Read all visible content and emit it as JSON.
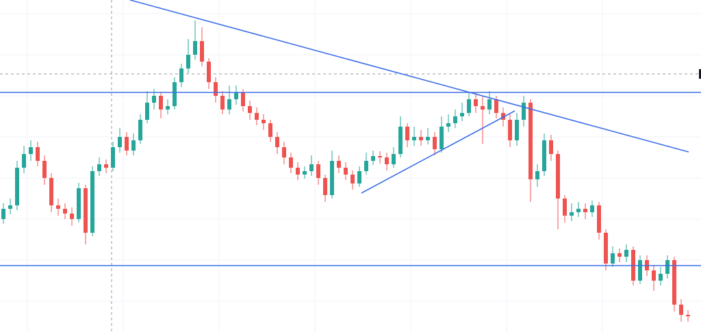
{
  "chart_data": {
    "type": "candlestick",
    "up_color": "#26a69a",
    "down_color": "#ef5350",
    "ylim": [
      0,
      485
    ],
    "open": [
      165,
      180,
      185,
      240,
      260,
      270,
      250,
      225,
      185,
      180,
      173,
      165,
      210,
      145,
      235,
      245,
      240,
      270,
      285,
      265,
      280,
      310,
      335,
      345,
      325,
      330,
      365,
      385,
      405,
      425,
      395,
      365,
      345,
      325,
      340,
      350,
      330,
      320,
      310,
      305,
      285,
      270,
      255,
      240,
      230,
      235,
      245,
      225,
      200,
      250,
      240,
      230,
      217,
      235,
      250,
      257,
      255,
      245,
      260,
      300,
      280,
      285,
      280,
      285,
      267,
      300,
      305,
      315,
      320,
      340,
      330,
      325,
      340,
      320,
      310,
      280,
      310,
      335,
      223,
      235,
      280,
      260,
      195,
      170,
      175,
      180,
      175,
      185,
      145,
      100,
      115,
      110,
      120,
      75,
      105,
      90,
      75,
      85,
      105,
      40,
      25
    ],
    "high": [
      188,
      195,
      250,
      272,
      280,
      278,
      258,
      232,
      195,
      188,
      182,
      218,
      215,
      242,
      255,
      252,
      278,
      298,
      292,
      290,
      318,
      352,
      355,
      350,
      340,
      372,
      392,
      428,
      455,
      445,
      400,
      372,
      352,
      360,
      360,
      355,
      338,
      328,
      318,
      310,
      292,
      278,
      262,
      248,
      242,
      258,
      250,
      230,
      265,
      258,
      248,
      236,
      242,
      262,
      265,
      264,
      262,
      270,
      315,
      305,
      300,
      295,
      298,
      292,
      315,
      318,
      325,
      335,
      350,
      350,
      345,
      352,
      345,
      328,
      318,
      320,
      345,
      340,
      245,
      290,
      288,
      265,
      200,
      188,
      190,
      188,
      192,
      190,
      150,
      125,
      122,
      128,
      125,
      112,
      112,
      98,
      95,
      112,
      110,
      48,
      32
    ],
    "low": [
      158,
      172,
      178,
      232,
      250,
      242,
      215,
      175,
      170,
      165,
      155,
      160,
      128,
      140,
      228,
      232,
      235,
      262,
      258,
      258,
      275,
      305,
      325,
      312,
      318,
      325,
      358,
      378,
      398,
      388,
      355,
      335,
      318,
      318,
      332,
      322,
      310,
      302,
      295,
      278,
      260,
      245,
      232,
      222,
      224,
      228,
      215,
      190,
      195,
      232,
      222,
      208,
      212,
      230,
      244,
      246,
      236,
      240,
      255,
      270,
      272,
      272,
      274,
      258,
      262,
      292,
      298,
      308,
      315,
      320,
      275,
      318,
      312,
      300,
      270,
      272,
      300,
      190,
      212,
      228,
      250,
      150,
      160,
      162,
      168,
      165,
      168,
      135,
      90,
      95,
      102,
      102,
      68,
      70,
      82,
      60,
      68,
      78,
      30,
      15,
      15
    ],
    "close": [
      180,
      185,
      240,
      260,
      270,
      250,
      225,
      185,
      180,
      173,
      165,
      210,
      145,
      235,
      245,
      240,
      270,
      285,
      265,
      280,
      310,
      335,
      345,
      325,
      330,
      365,
      385,
      405,
      425,
      395,
      365,
      345,
      325,
      340,
      350,
      330,
      320,
      310,
      305,
      285,
      270,
      255,
      240,
      230,
      235,
      245,
      225,
      200,
      250,
      240,
      230,
      217,
      235,
      250,
      257,
      255,
      245,
      260,
      300,
      280,
      285,
      280,
      285,
      267,
      300,
      305,
      315,
      320,
      340,
      330,
      325,
      340,
      320,
      310,
      280,
      310,
      335,
      223,
      235,
      280,
      260,
      195,
      170,
      175,
      180,
      175,
      185,
      145,
      100,
      115,
      110,
      120,
      75,
      105,
      90,
      75,
      85,
      105,
      40,
      25,
      23
    ]
  }
}
